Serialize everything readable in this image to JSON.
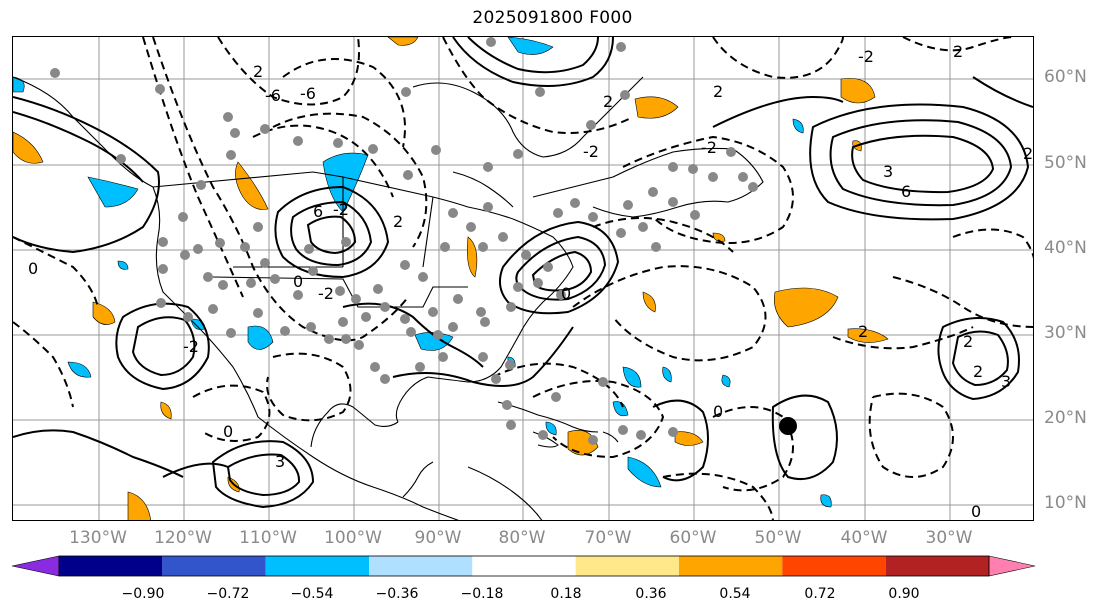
{
  "title": "2025091800 F000",
  "lat_labels": [
    "60°N",
    "50°N",
    "40°N",
    "30°N",
    "20°N",
    "10°N"
  ],
  "lon_labels": [
    "130°W",
    "120°W",
    "110°W",
    "100°W",
    "90°W",
    "80°W",
    "70°W",
    "60°W",
    "50°W",
    "40°W",
    "30°W"
  ],
  "contour_labels": [
    "-6",
    "2",
    "-2",
    "6",
    "3",
    "2",
    "-6",
    "-2",
    "3",
    "6",
    "-2",
    "2",
    "0",
    "-2",
    "0",
    "2",
    "-2",
    "2",
    "3",
    "2",
    "0",
    "2",
    "0",
    "2",
    "-2",
    "0",
    "2",
    "0"
  ],
  "colorbar": {
    "ticks": [
      "−0.90",
      "−0.72",
      "−0.54",
      "−0.36",
      "−0.18",
      "0.18",
      "0.36",
      "0.54",
      "0.72",
      "0.90"
    ],
    "colors": [
      "#8a2be2",
      "#00008b",
      "#3355cc",
      "#00bfff",
      "#b0e0ff",
      "#ffffff",
      "#ffe88a",
      "#ffa500",
      "#ff4500",
      "#b22222",
      "#ff80b0"
    ],
    "extend": "both"
  }
}
